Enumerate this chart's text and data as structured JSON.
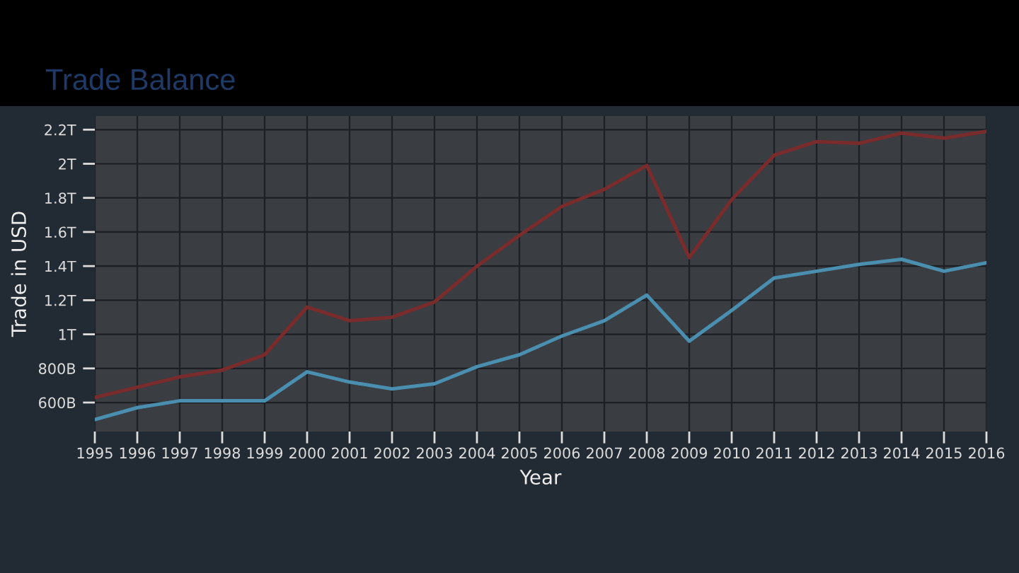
{
  "chart_data": {
    "type": "line",
    "title": "Trade Balance",
    "xlabel": "Year",
    "ylabel": "Trade in USD",
    "x": [
      1995,
      1996,
      1997,
      1998,
      1999,
      2000,
      2001,
      2002,
      2003,
      2004,
      2005,
      2006,
      2007,
      2008,
      2009,
      2010,
      2011,
      2012,
      2013,
      2014,
      2015,
      2016
    ],
    "series": [
      {
        "color": "#7a2b2b",
        "values": [
          630000000000,
          690000000000,
          750000000000,
          790000000000,
          880000000000,
          1160000000000,
          1080000000000,
          1100000000000,
          1190000000000,
          1400000000000,
          1580000000000,
          1750000000000,
          1850000000000,
          1990000000000,
          1450000000000,
          1790000000000,
          2050000000000,
          2130000000000,
          2120000000000,
          2180000000000,
          2150000000000,
          2190000000000
        ]
      },
      {
        "color": "#4a8fb0",
        "values": [
          500000000000,
          570000000000,
          610000000000,
          610000000000,
          610000000000,
          780000000000,
          720000000000,
          680000000000,
          710000000000,
          810000000000,
          880000000000,
          990000000000,
          1080000000000,
          1230000000000,
          960000000000,
          1140000000000,
          1330000000000,
          1370000000000,
          1410000000000,
          1440000000000,
          1370000000000,
          1420000000000
        ]
      }
    ],
    "xlim": [
      1995,
      2016
    ],
    "xticks": [
      1995,
      1996,
      1997,
      1998,
      1999,
      2000,
      2001,
      2002,
      2003,
      2004,
      2005,
      2006,
      2007,
      2008,
      2009,
      2010,
      2011,
      2012,
      2013,
      2014,
      2015,
      2016
    ],
    "ylim": [
      430000000000,
      2280000000000
    ],
    "yticks": [
      {
        "value": 600000000000,
        "label": "600B"
      },
      {
        "value": 800000000000,
        "label": "800B"
      },
      {
        "value": 1000000000000,
        "label": "1T"
      },
      {
        "value": 1200000000000,
        "label": "1.2T"
      },
      {
        "value": 1400000000000,
        "label": "1.4T"
      },
      {
        "value": 1600000000000,
        "label": "1.6T"
      },
      {
        "value": 1800000000000,
        "label": "1.8T"
      },
      {
        "value": 2000000000000,
        "label": "2T"
      },
      {
        "value": 2200000000000,
        "label": "2.2T"
      }
    ],
    "grid": true,
    "marker": "none",
    "line_style": "solid"
  }
}
